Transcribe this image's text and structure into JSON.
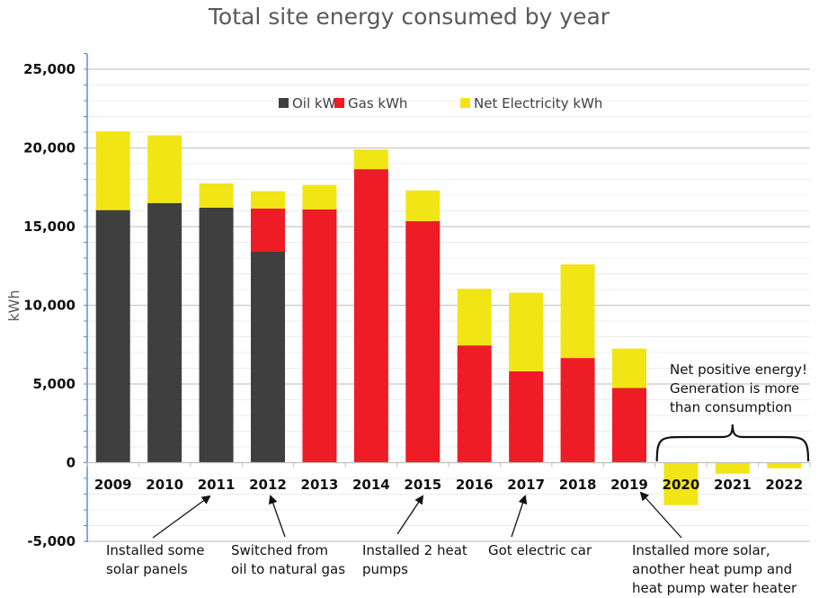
{
  "chart_data": {
    "type": "bar",
    "stacked": true,
    "title": "Total site energy consumed by year",
    "xlabel": "",
    "ylabel": "kWh",
    "ylim": [
      -5000,
      25000
    ],
    "yticks": [
      -5000,
      0,
      5000,
      10000,
      15000,
      20000,
      25000
    ],
    "ytick_labels": [
      "-5,000",
      "0",
      "5,000",
      "10,000",
      "15,000",
      "20,000",
      "25,000"
    ],
    "minor_tick_step": 1000,
    "grid": true,
    "legend_position": "top-center",
    "categories": [
      "2009",
      "2010",
      "2011",
      "2012",
      "2013",
      "2014",
      "2015",
      "2016",
      "2017",
      "2018",
      "2019",
      "2020",
      "2021",
      "2022"
    ],
    "series": [
      {
        "name": "Oil kWh",
        "color": "#3f3f3f",
        "values": [
          16050,
          16500,
          16200,
          13400,
          0,
          0,
          0,
          0,
          0,
          0,
          0,
          0,
          0,
          0
        ]
      },
      {
        "name": "Gas kWh",
        "color": "#ee1c24",
        "values": [
          0,
          0,
          0,
          2750,
          16100,
          18650,
          15350,
          7450,
          5800,
          6650,
          4750,
          0,
          0,
          0
        ]
      },
      {
        "name": "Net Electricity kWh",
        "color": "#f2e516",
        "values": [
          5000,
          4300,
          1550,
          1100,
          1550,
          1250,
          1950,
          3600,
          5000,
          5950,
          2500,
          -2700,
          -700,
          -350
        ]
      }
    ],
    "annotations": [
      {
        "category": "2011",
        "lines": [
          "Installed some",
          "solar panels"
        ]
      },
      {
        "category": "2012",
        "lines": [
          "Switched from",
          "oil to natural gas"
        ]
      },
      {
        "category": "2015",
        "lines": [
          "Installed 2 heat",
          "pumps"
        ]
      },
      {
        "category": "2017",
        "lines": [
          "Got electric car"
        ]
      },
      {
        "category": "2019",
        "lines": [
          "Installed more solar,",
          "another heat pump and",
          "heat pump water heater"
        ]
      },
      {
        "categories": [
          "2020",
          "2021",
          "2022"
        ],
        "type": "brace",
        "lines": [
          "Net positive energy!",
          "Generation is more",
          "than consumption"
        ]
      }
    ]
  }
}
